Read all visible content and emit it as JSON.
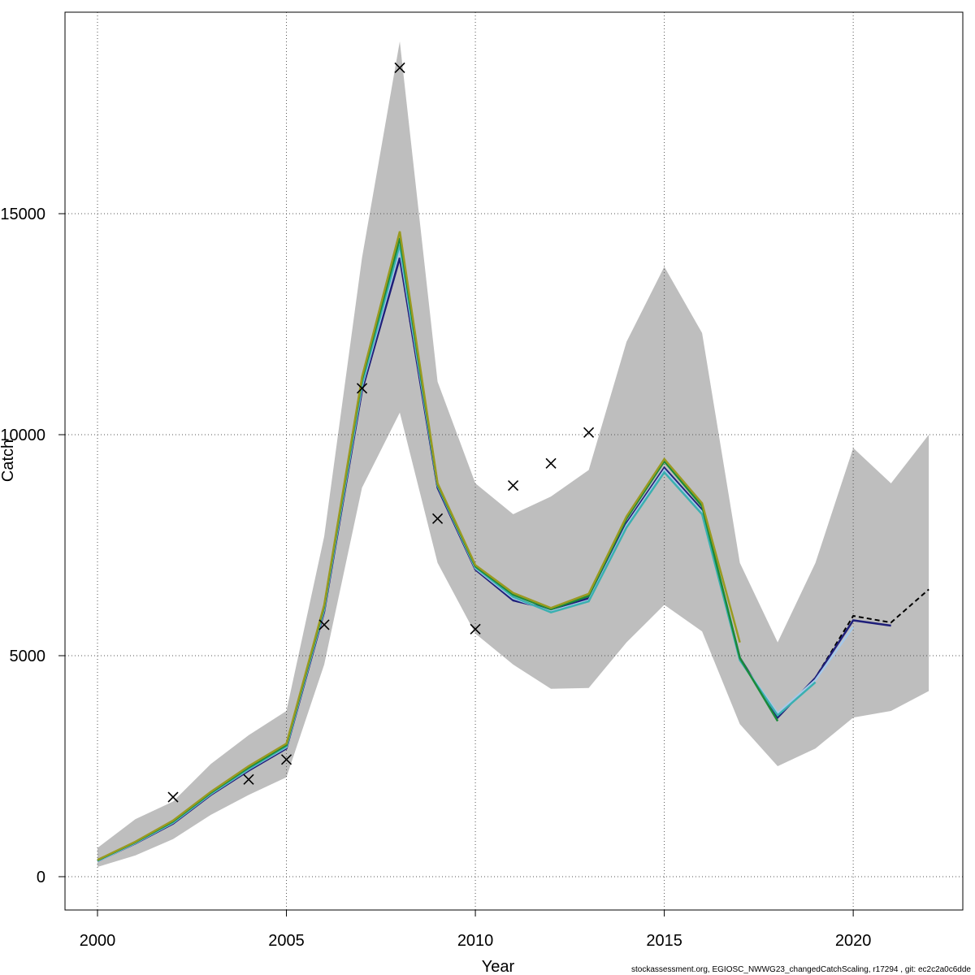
{
  "chart_data": {
    "type": "line",
    "x_label": "Year",
    "y_label": "Catch",
    "footer": "stockassessment.org, EGIOSC_NWWG23_changedCatchScaling, r17294 , git: ec2c2a0c6dde",
    "x": [
      2000,
      2001,
      2002,
      2003,
      2004,
      2005,
      2006,
      2007,
      2008,
      2009,
      2010,
      2011,
      2012,
      2013,
      2014,
      2015,
      2016,
      2017,
      2018,
      2019,
      2020,
      2021,
      2022
    ],
    "xlim": [
      1999.14,
      2022.9
    ],
    "ylim": [
      -754,
      19559
    ],
    "xticks": [
      2000,
      2005,
      2010,
      2015,
      2020
    ],
    "yticks": [
      0,
      5000,
      10000,
      15000
    ],
    "grid": true,
    "band": {
      "color": "#bebebe",
      "upper": [
        650,
        1300,
        1700,
        2550,
        3200,
        3750,
        7700,
        14000,
        18900,
        11200,
        8900,
        8200,
        8600,
        9200,
        12100,
        13800,
        12300,
        7100,
        5300,
        7100,
        9700,
        8900,
        10000
      ],
      "lower": [
        220,
        480,
        850,
        1400,
        1850,
        2250,
        4800,
        8800,
        10500,
        7100,
        5500,
        4800,
        4250,
        4270,
        5300,
        6150,
        5550,
        3450,
        2500,
        2900,
        3600,
        3750,
        4200
      ]
    },
    "observations": {
      "color": "#000000",
      "values": [
        null,
        null,
        1800,
        null,
        2200,
        2650,
        5700,
        11050,
        18300,
        8100,
        5600,
        8850,
        9350,
        10050,
        null,
        null,
        null,
        null,
        null,
        null,
        null,
        null,
        null
      ]
    },
    "series": [
      {
        "color": "#000000",
        "dashed": true,
        "values": [
          350,
          750,
          1200,
          1850,
          2400,
          2900,
          6000,
          11000,
          14000,
          8800,
          6950,
          6250,
          6050,
          6300,
          8000,
          9250,
          8300,
          4950,
          3600,
          4500,
          5900,
          5750,
          6500
        ]
      },
      {
        "color": "#1f1f7a",
        "values": [
          350,
          750,
          1200,
          1850,
          2400,
          2900,
          6000,
          11000,
          14000,
          8800,
          6950,
          6250,
          6050,
          6300,
          8000,
          9250,
          8300,
          4950,
          3600,
          4500,
          5800,
          5680,
          null
        ]
      },
      {
        "color": "#a6c8e8",
        "values": [
          350,
          760,
          1220,
          1870,
          2430,
          2930,
          6050,
          11100,
          14200,
          8850,
          6980,
          6300,
          6000,
          6250,
          7950,
          9200,
          8250,
          4900,
          3700,
          4450,
          5650,
          null,
          null
        ]
      },
      {
        "color": "#3ab0b0",
        "values": [
          360,
          770,
          1230,
          1880,
          2440,
          2950,
          6080,
          11150,
          14300,
          8860,
          7000,
          6330,
          5980,
          6230,
          7900,
          9150,
          8200,
          4900,
          3650,
          4400,
          null,
          null,
          null
        ]
      },
      {
        "color": "#1a8a3a",
        "values": [
          370,
          780,
          1250,
          1900,
          2470,
          2980,
          6120,
          11250,
          14450,
          8880,
          7020,
          6380,
          6050,
          6350,
          8100,
          9400,
          8380,
          4950,
          3520,
          null,
          null,
          null,
          null
        ]
      },
      {
        "color": "#9a9a20",
        "values": [
          380,
          790,
          1270,
          1920,
          2500,
          3010,
          6150,
          11300,
          14600,
          8900,
          7050,
          6420,
          6080,
          6400,
          8150,
          9450,
          8450,
          5300,
          null,
          null,
          null,
          null,
          null
        ]
      }
    ]
  }
}
